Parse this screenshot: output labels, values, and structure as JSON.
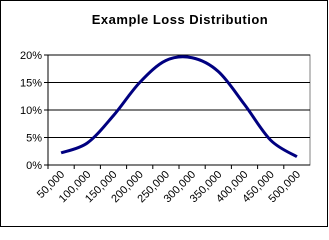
{
  "chart_data": {
    "type": "line",
    "title": "Example Loss Distribution",
    "categories": [
      "50,000",
      "100,000",
      "150,000",
      "200,000",
      "250,000",
      "300,000",
      "350,000",
      "400,000",
      "450,000",
      "500,000"
    ],
    "series": [
      {
        "name": "Loss",
        "color": "#000080",
        "values": [
          2.2,
          4,
          9,
          15,
          19,
          19.5,
          17,
          11,
          4.5,
          1.5
        ]
      }
    ],
    "ylim": [
      0,
      20
    ],
    "yticks": [
      {
        "value": 0,
        "label": "0%"
      },
      {
        "value": 5,
        "label": "5%"
      },
      {
        "value": 10,
        "label": "10%"
      },
      {
        "value": 15,
        "label": "15%"
      },
      {
        "value": 20,
        "label": "20%"
      }
    ],
    "grid": true
  }
}
